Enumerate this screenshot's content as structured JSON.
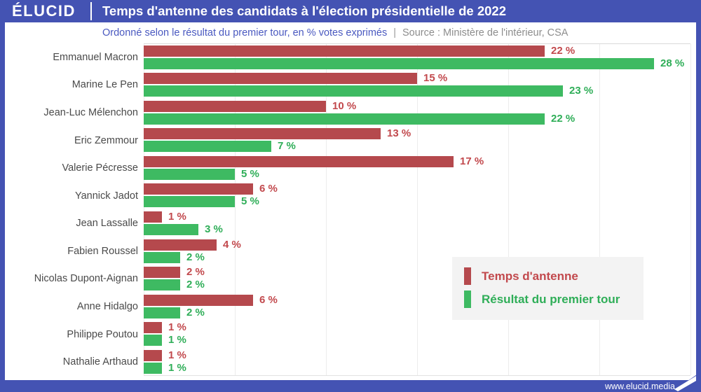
{
  "header": {
    "logo": "ÉLUCID",
    "title": "Temps d'antenne des candidats à l'élection présidentielle de 2022"
  },
  "subtitle": {
    "description": "Ordonné selon le résultat du premier tour, en % votes exprimés",
    "separator": "|",
    "source": "Source : Ministère de l'intérieur, CSA"
  },
  "legend": {
    "items": [
      {
        "label": "Temps d'antenne",
        "color": "#b5494d",
        "text_color": "#c2494d"
      },
      {
        "label": "Résultat du premier tour",
        "color": "#3eba62",
        "text_color": "#2fae58"
      }
    ]
  },
  "footer": {
    "website": "www.elucid.media"
  },
  "colors": {
    "frame_blue": "#4453b3",
    "airtime_red": "#b5494d",
    "result_green": "#3eba62",
    "airtime_label_red": "#c2494d",
    "result_label_green": "#2fae58",
    "subtitle_blue": "#4a59c0",
    "source_gray": "#8d8d8d",
    "candidate_gray": "#4a4a4a",
    "legend_bg": "#f3f3f3",
    "gridline_gray": "#ececec"
  },
  "chart_data": {
    "type": "bar",
    "orientation": "horizontal",
    "title": "Temps d'antenne des candidats à l'élection présidentielle de 2022",
    "subtitle": "Ordonné selon le résultat du premier tour, en % votes exprimés",
    "source": "Ministère de l'intérieur, CSA",
    "value_suffix": " %",
    "xlim": [
      0,
      30
    ],
    "gridline_step": 5,
    "grid": true,
    "legend_position": "lower-right",
    "categories": [
      "Emmanuel Macron",
      "Marine Le Pen",
      "Jean-Luc Mélenchon",
      "Eric Zemmour",
      "Valerie Pécresse",
      "Yannick Jadot",
      "Jean Lassalle",
      "Fabien Roussel",
      "Nicolas Dupont-Aignan",
      "Anne Hidalgo",
      "Philippe Poutou",
      "Nathalie Arthaud"
    ],
    "series": [
      {
        "name": "Temps d'antenne",
        "color": "#b5494d",
        "label_color": "#c2494d",
        "values": [
          22,
          15,
          10,
          13,
          17,
          6,
          1,
          4,
          2,
          6,
          1,
          1
        ]
      },
      {
        "name": "Résultat du premier tour",
        "color": "#3eba62",
        "label_color": "#2fae58",
        "values": [
          28,
          23,
          22,
          7,
          5,
          5,
          3,
          2,
          2,
          2,
          1,
          1
        ]
      }
    ]
  }
}
